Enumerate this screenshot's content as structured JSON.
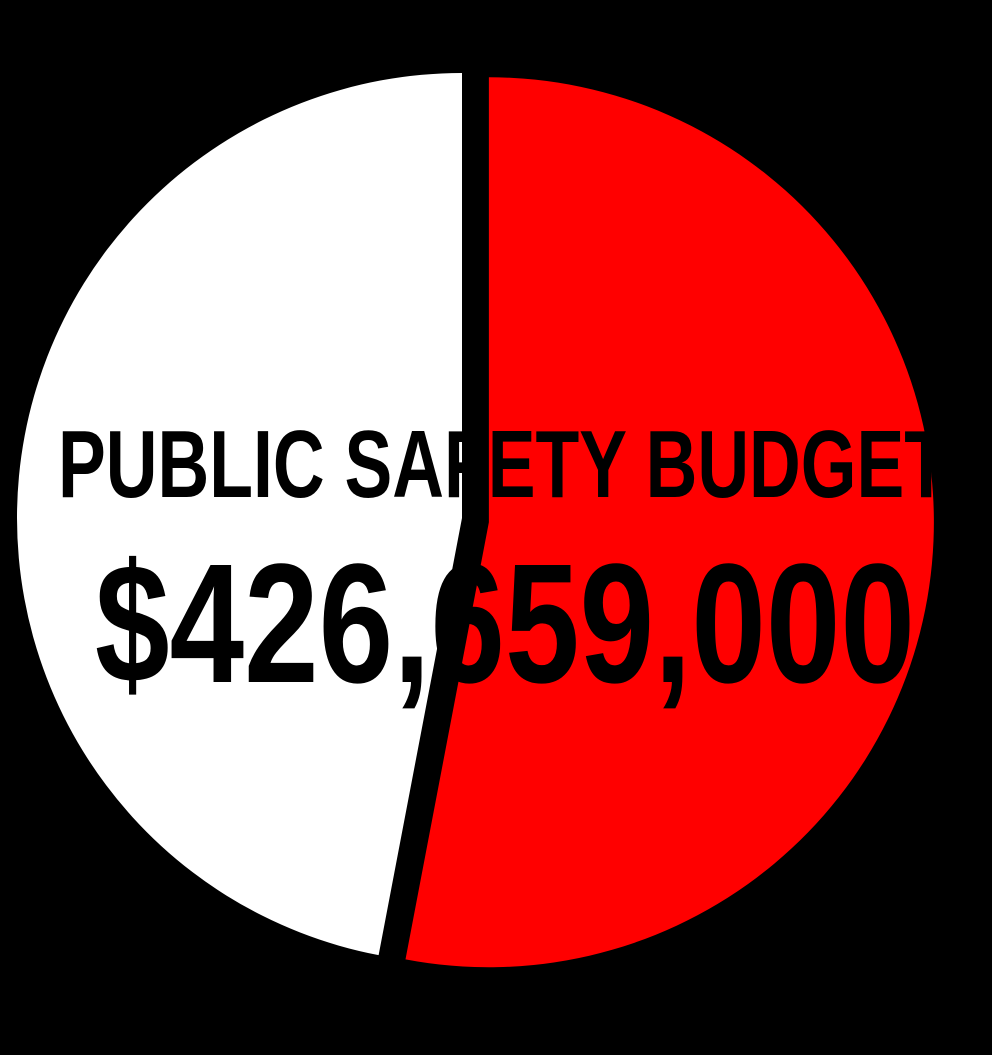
{
  "chart_data": {
    "type": "pie",
    "slices": [
      {
        "label": "",
        "value": 53,
        "color": "#ff0000",
        "exploded": true
      },
      {
        "label": "",
        "value": 47,
        "color": "#ffffff",
        "exploded": false
      }
    ],
    "start_angle_deg": 0,
    "direction": "clockwise",
    "title": "PUBLIC SAFETY BUDGET",
    "subtitle": "$426,659,000",
    "background": "#000000"
  }
}
